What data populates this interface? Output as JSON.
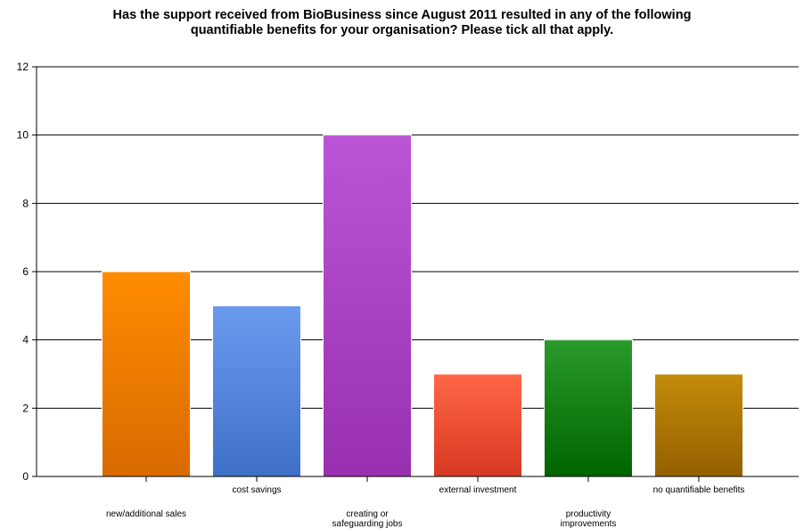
{
  "chart_data": {
    "type": "bar",
    "title": "Has the support received from BioBusiness since August 2011 resulted in any of the following quantifiable benefits for your organisation? Please tick all that apply.",
    "title_lines": [
      "Has the support received from BioBusiness since August 2011 resulted in any of the following",
      "quantifiable benefits for your organisation? Please tick all that apply."
    ],
    "categories": [
      "new/additional sales",
      "cost savings",
      "creating or safeguarding jobs",
      "external investment",
      "productivity improvements",
      "no quantifiable benefits"
    ],
    "category_label_lines": [
      [
        "new/additional sales"
      ],
      [
        "cost savings"
      ],
      [
        "creating or",
        "safeguarding jobs"
      ],
      [
        "external investment"
      ],
      [
        "productivity",
        "improvements"
      ],
      [
        "no quantifiable benefits"
      ]
    ],
    "values": [
      6,
      5,
      10,
      3,
      4,
      3
    ],
    "colors": [
      [
        "#ff8c00",
        "#d96a00"
      ],
      [
        "#6b9bef",
        "#3f70c8"
      ],
      [
        "#bb55d6",
        "#9830b0"
      ],
      [
        "#ff6647",
        "#d63a22"
      ],
      [
        "#2a9a2a",
        "#006400"
      ],
      [
        "#c48b0a",
        "#946000"
      ]
    ],
    "ylim": [
      0,
      12
    ],
    "yticks": [
      0,
      2,
      4,
      6,
      8,
      10,
      12
    ],
    "grid": true,
    "xlabel": "",
    "ylabel": ""
  }
}
